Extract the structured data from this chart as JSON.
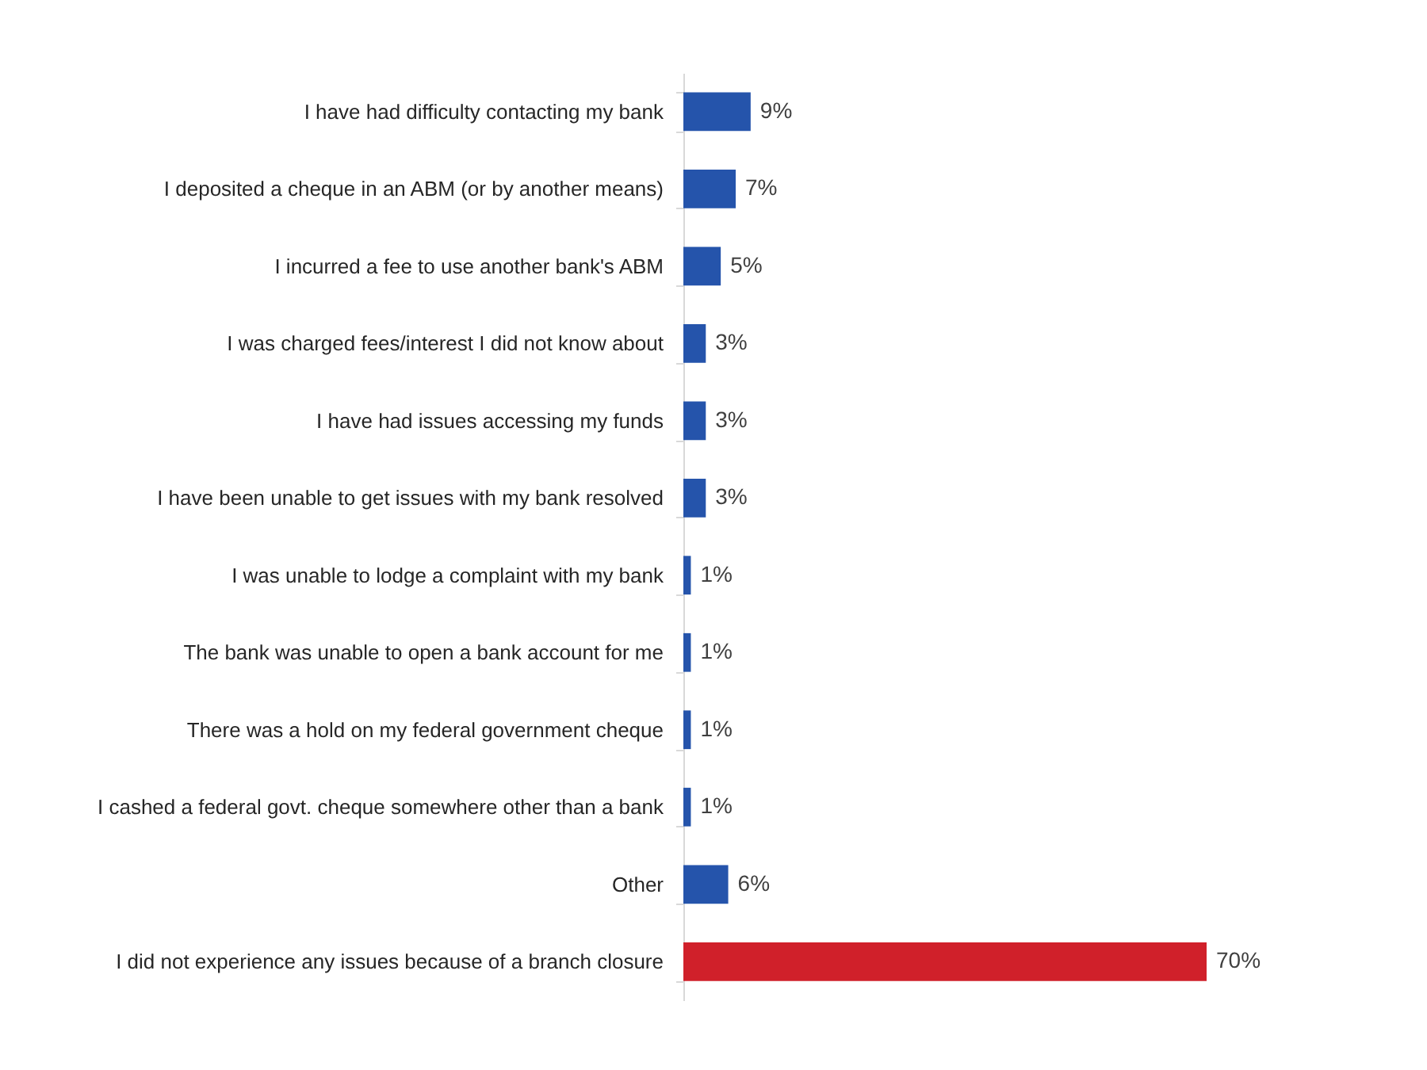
{
  "chart_data": {
    "type": "bar",
    "orientation": "horizontal",
    "categories": [
      "I have had difficulty contacting my bank",
      "I deposited a cheque in an ABM (or by another means)",
      "I incurred a fee to use another bank's ABM",
      "I was charged fees/interest I did not know about ",
      "I have had issues accessing my funds",
      "I have been unable to get issues with my bank resolved",
      "I was unable to lodge a complaint with my bank",
      "The bank was unable to open a bank account for me",
      "There was a hold on my federal government cheque",
      "I cashed a federal govt. cheque somewhere other than a bank",
      "Other",
      "I did not experience any issues because of a branch closure"
    ],
    "values": [
      9,
      7,
      5,
      3,
      3,
      3,
      1,
      1,
      1,
      1,
      6,
      70
    ],
    "value_labels": [
      "9%",
      "7%",
      "5%",
      "3%",
      "3%",
      "3%",
      "1%",
      "1%",
      "1%",
      "1%",
      "6%",
      "70%"
    ],
    "colors": [
      "#2554ab",
      "#2554ab",
      "#2554ab",
      "#2554ab",
      "#2554ab",
      "#2554ab",
      "#2554ab",
      "#2554ab",
      "#2554ab",
      "#2554ab",
      "#2554ab",
      "#d0202a"
    ],
    "grid": false
  }
}
